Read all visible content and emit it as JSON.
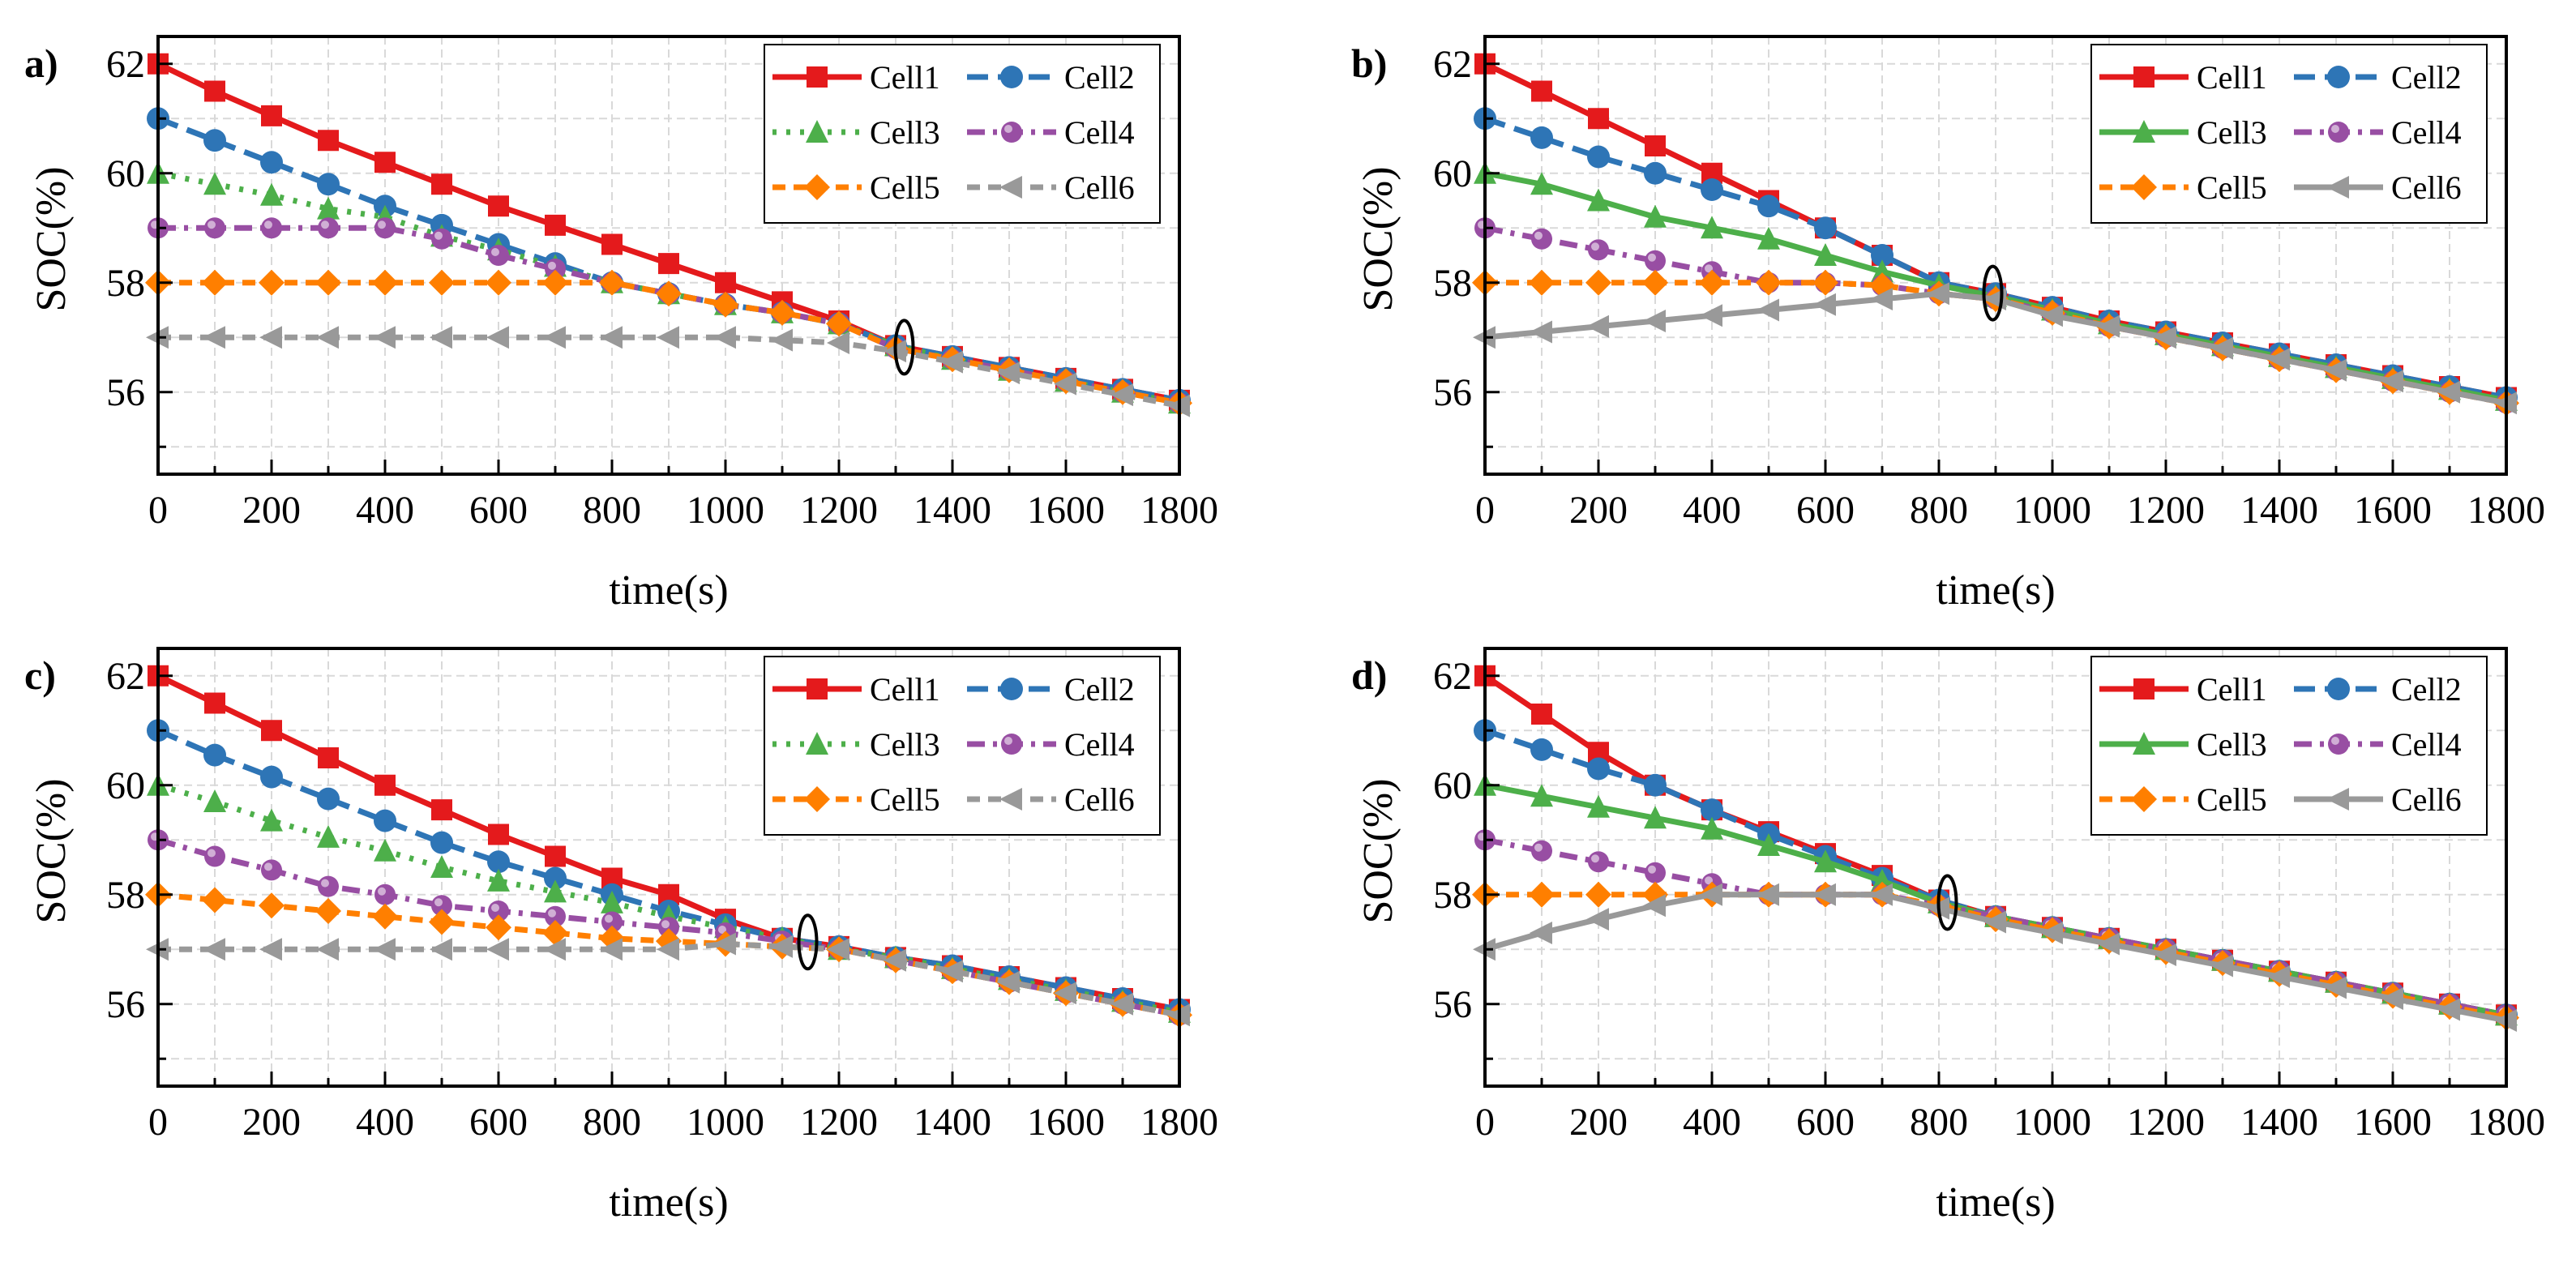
{
  "figure": {
    "ylabel": "SOC(%)",
    "xlabel": "time(s)"
  },
  "chart_data": [
    {
      "panel": "a)",
      "type": "line",
      "xlim": [
        0,
        1800
      ],
      "ylim": [
        54.5,
        62.5
      ],
      "xticks": [
        0,
        200,
        400,
        600,
        800,
        1000,
        1200,
        1400,
        1600,
        1800
      ],
      "yticks": [
        56,
        58,
        60,
        62
      ],
      "xlabel": "time(s)",
      "ylabel": "SOC(%)",
      "marker_ellipse_x": 1315,
      "x": [
        0,
        100,
        200,
        300,
        400,
        500,
        600,
        700,
        800,
        900,
        1000,
        1100,
        1200,
        1300,
        1400,
        1500,
        1600,
        1700,
        1800
      ],
      "series": [
        {
          "name": "Cell1",
          "color": "#e41a1c",
          "marker": "square",
          "dash": "solid",
          "values": [
            62.0,
            61.5,
            61.05,
            60.6,
            60.2,
            59.8,
            59.4,
            59.05,
            58.7,
            58.35,
            58.0,
            57.65,
            57.3,
            56.85,
            56.65,
            56.45,
            56.25,
            56.05,
            55.85
          ]
        },
        {
          "name": "Cell2",
          "color": "#2e75b6",
          "marker": "circle",
          "dash": "longdash",
          "values": [
            61.0,
            60.6,
            60.2,
            59.8,
            59.4,
            59.05,
            58.7,
            58.35,
            58.0,
            57.8,
            57.6,
            57.45,
            57.25,
            56.85,
            56.65,
            56.45,
            56.25,
            56.05,
            55.85
          ]
        },
        {
          "name": "Cell3",
          "color": "#4daf4a",
          "marker": "triangle",
          "dash": "dot",
          "values": [
            60.0,
            59.8,
            59.6,
            59.35,
            59.2,
            58.85,
            58.6,
            58.3,
            58.0,
            57.8,
            57.6,
            57.45,
            57.25,
            56.85,
            56.6,
            56.4,
            56.2,
            56.0,
            55.8
          ]
        },
        {
          "name": "Cell4",
          "color": "#984ea3",
          "marker": "sphere",
          "dash": "dashdot",
          "values": [
            59.0,
            59.0,
            59.0,
            59.0,
            59.0,
            58.8,
            58.5,
            58.25,
            58.0,
            57.8,
            57.6,
            57.45,
            57.25,
            56.8,
            56.6,
            56.4,
            56.2,
            56.0,
            55.8
          ]
        },
        {
          "name": "Cell5",
          "color": "#ff7f00",
          "marker": "diamond",
          "dash": "dash",
          "values": [
            58.0,
            58.0,
            58.0,
            58.0,
            58.0,
            58.0,
            58.0,
            58.0,
            58.0,
            57.8,
            57.6,
            57.45,
            57.25,
            56.8,
            56.6,
            56.4,
            56.2,
            56.0,
            55.8
          ]
        },
        {
          "name": "Cell6",
          "color": "#999999",
          "marker": "lefttriangle",
          "dash": "dash",
          "values": [
            57.0,
            57.0,
            57.0,
            57.0,
            57.0,
            57.0,
            57.0,
            57.0,
            57.0,
            57.0,
            57.0,
            56.95,
            56.9,
            56.75,
            56.55,
            56.35,
            56.15,
            55.95,
            55.75
          ]
        }
      ]
    },
    {
      "panel": "b)",
      "type": "line",
      "xlim": [
        0,
        1800
      ],
      "ylim": [
        54.5,
        62.5
      ],
      "xticks": [
        0,
        200,
        400,
        600,
        800,
        1000,
        1200,
        1400,
        1600,
        1800
      ],
      "yticks": [
        56,
        58,
        60,
        62
      ],
      "xlabel": "time(s)",
      "ylabel": "SOC(%)",
      "marker_ellipse_x": 895,
      "x": [
        0,
        100,
        200,
        300,
        400,
        500,
        600,
        700,
        800,
        900,
        1000,
        1100,
        1200,
        1300,
        1400,
        1500,
        1600,
        1700,
        1800
      ],
      "series": [
        {
          "name": "Cell1",
          "color": "#e41a1c",
          "marker": "square",
          "dash": "solid",
          "values": [
            62.0,
            61.5,
            61.0,
            60.5,
            60.0,
            59.5,
            59.0,
            58.5,
            58.0,
            57.8,
            57.55,
            57.3,
            57.1,
            56.9,
            56.7,
            56.5,
            56.3,
            56.1,
            55.9
          ]
        },
        {
          "name": "Cell2",
          "color": "#2e75b6",
          "marker": "circle",
          "dash": "longdash",
          "values": [
            61.0,
            60.65,
            60.3,
            60.0,
            59.7,
            59.4,
            59.0,
            58.5,
            58.0,
            57.8,
            57.55,
            57.3,
            57.1,
            56.9,
            56.7,
            56.5,
            56.3,
            56.1,
            55.9
          ]
        },
        {
          "name": "Cell3",
          "color": "#4daf4a",
          "marker": "triangle",
          "dash": "solid",
          "values": [
            60.0,
            59.8,
            59.5,
            59.2,
            59.0,
            58.8,
            58.5,
            58.2,
            57.95,
            57.75,
            57.5,
            57.25,
            57.05,
            56.85,
            56.65,
            56.45,
            56.25,
            56.05,
            55.85
          ]
        },
        {
          "name": "Cell4",
          "color": "#984ea3",
          "marker": "sphere",
          "dash": "dashdot",
          "values": [
            59.0,
            58.8,
            58.6,
            58.4,
            58.2,
            58.0,
            58.0,
            57.95,
            57.8,
            57.7,
            57.45,
            57.2,
            57.0,
            56.8,
            56.6,
            56.4,
            56.2,
            56.0,
            55.8
          ]
        },
        {
          "name": "Cell5",
          "color": "#ff7f00",
          "marker": "diamond",
          "dash": "dash",
          "values": [
            58.0,
            58.0,
            58.0,
            58.0,
            58.0,
            58.0,
            58.0,
            57.95,
            57.8,
            57.7,
            57.45,
            57.2,
            57.0,
            56.8,
            56.6,
            56.4,
            56.2,
            56.0,
            55.8
          ]
        },
        {
          "name": "Cell6",
          "color": "#999999",
          "marker": "lefttriangle",
          "dash": "solid",
          "values": [
            57.0,
            57.1,
            57.2,
            57.3,
            57.4,
            57.5,
            57.6,
            57.7,
            57.8,
            57.7,
            57.4,
            57.2,
            57.0,
            56.8,
            56.6,
            56.4,
            56.2,
            56.0,
            55.8
          ]
        }
      ]
    },
    {
      "panel": "c)",
      "type": "line",
      "xlim": [
        0,
        1800
      ],
      "ylim": [
        54.5,
        62.5
      ],
      "xticks": [
        0,
        200,
        400,
        600,
        800,
        1000,
        1200,
        1400,
        1600,
        1800
      ],
      "yticks": [
        56,
        58,
        60,
        62
      ],
      "xlabel": "time(s)",
      "ylabel": "SOC(%)",
      "marker_ellipse_x": 1145,
      "x": [
        0,
        100,
        200,
        300,
        400,
        500,
        600,
        700,
        800,
        900,
        1000,
        1100,
        1200,
        1300,
        1400,
        1500,
        1600,
        1700,
        1800
      ],
      "series": [
        {
          "name": "Cell1",
          "color": "#e41a1c",
          "marker": "square",
          "dash": "solid",
          "values": [
            62.0,
            61.5,
            61.0,
            60.5,
            60.0,
            59.55,
            59.1,
            58.7,
            58.3,
            58.0,
            57.55,
            57.2,
            57.05,
            56.85,
            56.7,
            56.5,
            56.3,
            56.1,
            55.9
          ]
        },
        {
          "name": "Cell2",
          "color": "#2e75b6",
          "marker": "circle",
          "dash": "longdash",
          "values": [
            61.0,
            60.55,
            60.15,
            59.75,
            59.35,
            58.95,
            58.6,
            58.3,
            58.0,
            57.7,
            57.45,
            57.2,
            57.05,
            56.85,
            56.7,
            56.5,
            56.3,
            56.1,
            55.9
          ]
        },
        {
          "name": "Cell3",
          "color": "#4daf4a",
          "marker": "triangle",
          "dash": "dot",
          "values": [
            60.0,
            59.7,
            59.35,
            59.05,
            58.8,
            58.5,
            58.25,
            58.05,
            57.85,
            57.6,
            57.4,
            57.2,
            57.0,
            56.85,
            56.65,
            56.45,
            56.25,
            56.05,
            55.85
          ]
        },
        {
          "name": "Cell4",
          "color": "#984ea3",
          "marker": "sphere",
          "dash": "dashdot",
          "values": [
            59.0,
            58.7,
            58.45,
            58.15,
            58.0,
            57.8,
            57.7,
            57.6,
            57.5,
            57.4,
            57.3,
            57.15,
            57.0,
            56.8,
            56.6,
            56.4,
            56.2,
            56.0,
            55.8
          ]
        },
        {
          "name": "Cell5",
          "color": "#ff7f00",
          "marker": "diamond",
          "dash": "dash",
          "values": [
            58.0,
            57.9,
            57.8,
            57.7,
            57.6,
            57.5,
            57.4,
            57.3,
            57.2,
            57.15,
            57.1,
            57.05,
            57.0,
            56.8,
            56.6,
            56.4,
            56.2,
            56.0,
            55.8
          ]
        },
        {
          "name": "Cell6",
          "color": "#999999",
          "marker": "lefttriangle",
          "dash": "dash",
          "values": [
            57.0,
            57.0,
            57.0,
            57.0,
            57.0,
            57.0,
            57.0,
            57.0,
            57.0,
            57.0,
            57.1,
            57.05,
            57.0,
            56.8,
            56.6,
            56.4,
            56.2,
            56.0,
            55.8
          ]
        }
      ]
    },
    {
      "panel": "d)",
      "type": "line",
      "xlim": [
        0,
        1800
      ],
      "ylim": [
        54.5,
        62.5
      ],
      "xticks": [
        0,
        200,
        400,
        600,
        800,
        1000,
        1200,
        1400,
        1600,
        1800
      ],
      "yticks": [
        56,
        58,
        60,
        62
      ],
      "xlabel": "time(s)",
      "ylabel": "SOC(%)",
      "marker_ellipse_x": 815,
      "x": [
        0,
        100,
        200,
        300,
        400,
        500,
        600,
        700,
        800,
        900,
        1000,
        1100,
        1200,
        1300,
        1400,
        1500,
        1600,
        1700,
        1800
      ],
      "series": [
        {
          "name": "Cell1",
          "color": "#e41a1c",
          "marker": "square",
          "dash": "solid",
          "values": [
            62.0,
            61.3,
            60.6,
            60.0,
            59.55,
            59.15,
            58.75,
            58.35,
            57.9,
            57.6,
            57.4,
            57.2,
            57.0,
            56.8,
            56.6,
            56.4,
            56.2,
            56.0,
            55.8
          ]
        },
        {
          "name": "Cell2",
          "color": "#2e75b6",
          "marker": "circle",
          "dash": "longdash",
          "values": [
            61.0,
            60.65,
            60.3,
            60.0,
            59.55,
            59.1,
            58.7,
            58.3,
            57.9,
            57.6,
            57.4,
            57.2,
            57.0,
            56.8,
            56.6,
            56.4,
            56.2,
            56.0,
            55.8
          ]
        },
        {
          "name": "Cell3",
          "color": "#4daf4a",
          "marker": "triangle",
          "dash": "solid",
          "values": [
            60.0,
            59.8,
            59.6,
            59.4,
            59.2,
            58.9,
            58.6,
            58.25,
            57.85,
            57.6,
            57.4,
            57.2,
            57.0,
            56.8,
            56.6,
            56.4,
            56.2,
            56.0,
            55.8
          ]
        },
        {
          "name": "Cell4",
          "color": "#984ea3",
          "marker": "sphere",
          "dash": "dashdot",
          "values": [
            59.0,
            58.8,
            58.6,
            58.4,
            58.2,
            58.0,
            58.0,
            58.0,
            57.8,
            57.6,
            57.4,
            57.2,
            57.0,
            56.8,
            56.6,
            56.4,
            56.2,
            56.0,
            55.8
          ]
        },
        {
          "name": "Cell5",
          "color": "#ff7f00",
          "marker": "diamond",
          "dash": "dash",
          "values": [
            58.0,
            58.0,
            58.0,
            58.0,
            58.0,
            58.0,
            58.0,
            58.0,
            57.8,
            57.55,
            57.35,
            57.15,
            56.95,
            56.75,
            56.55,
            56.35,
            56.15,
            55.95,
            55.75
          ]
        },
        {
          "name": "Cell6",
          "color": "#999999",
          "marker": "lefttriangle",
          "dash": "solid",
          "values": [
            57.0,
            57.3,
            57.55,
            57.8,
            58.0,
            58.0,
            58.0,
            58.0,
            57.75,
            57.5,
            57.3,
            57.1,
            56.9,
            56.7,
            56.5,
            56.3,
            56.1,
            55.9,
            55.7
          ]
        }
      ]
    }
  ]
}
